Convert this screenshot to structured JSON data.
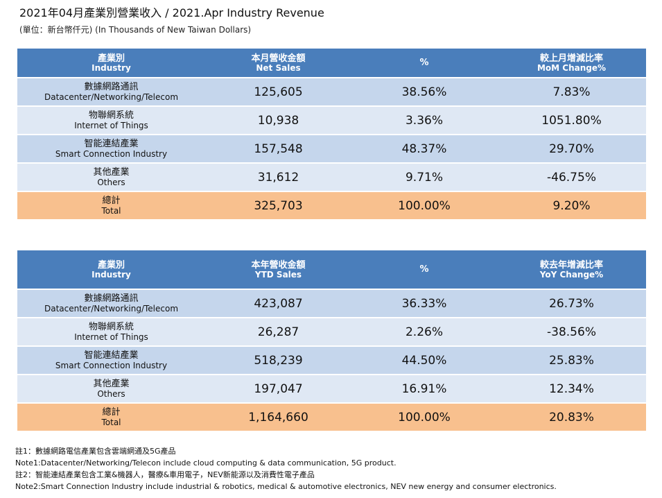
{
  "header": {
    "title": "2021年04月產業別營業收入 / 2021.Apr Industry Revenue",
    "unit": "(單位：新台幣仟元) (In Thousands of New Taiwan Dollars)"
  },
  "monthly": {
    "headers": [
      {
        "zh": "產業別",
        "en": "Industry"
      },
      {
        "zh": "本月營收金額",
        "en": "Net Sales"
      },
      {
        "zh": "%",
        "en": ""
      },
      {
        "zh": "較上月增減比率",
        "en": "MoM Change%"
      }
    ],
    "rows": [
      {
        "zh": "數據網路通訊",
        "en": "Datacenter/Networking/Telecom",
        "sales": "125,605",
        "pct": "38.56%",
        "change": "7.83%"
      },
      {
        "zh": "物聯網系統",
        "en": "Internet of Things",
        "sales": "10,938",
        "pct": "3.36%",
        "change": "1051.80%"
      },
      {
        "zh": "智能連結產業",
        "en": "Smart Connection Industry",
        "sales": "157,548",
        "pct": "48.37%",
        "change": "29.70%"
      },
      {
        "zh": "其他產業",
        "en": "Others",
        "sales": "31,612",
        "pct": "9.71%",
        "change": "-46.75%"
      }
    ],
    "total": {
      "zh": "總計",
      "en": "Total",
      "sales": "325,703",
      "pct": "100.00%",
      "change": "9.20%"
    }
  },
  "ytd": {
    "headers": [
      {
        "zh": "產業別",
        "en": "Industry"
      },
      {
        "zh": "本年營收金額",
        "en": "YTD Sales"
      },
      {
        "zh": "%",
        "en": ""
      },
      {
        "zh": "較去年增減比率",
        "en": "YoY Change%"
      }
    ],
    "rows": [
      {
        "zh": "數據網路通訊",
        "en": "Datacenter/Networking/Telecom",
        "sales": "423,087",
        "pct": "36.33%",
        "change": "26.73%"
      },
      {
        "zh": "物聯網系統",
        "en": "Internet of Things",
        "sales": "26,287",
        "pct": "2.26%",
        "change": "-38.56%"
      },
      {
        "zh": "智能連結產業",
        "en": "Smart Connection Industry",
        "sales": "518,239",
        "pct": "44.50%",
        "change": "25.83%"
      },
      {
        "zh": "其他產業",
        "en": "Others",
        "sales": "197,047",
        "pct": "16.91%",
        "change": "12.34%"
      }
    ],
    "total": {
      "zh": "總計",
      "en": "Total",
      "sales": "1,164,660",
      "pct": "100.00%",
      "change": "20.83%"
    }
  },
  "notes": [
    "註1：數據網路電信產業包含雲端網通及5G產品",
    "Note1:Datacenter/Networking/Telecon include cloud computing & data communication, 5G product.",
    "註2：智能連結產業包含工業&機器人，醫療&車用電子，NEV新能源以及消費性電子產品",
    "Note2:Smart Connection Industry include industrial & robotics, medical & automotive electronics, NEV new energy and consumer electronics."
  ],
  "colors": {
    "header_bg": "#4a7ebb",
    "row_odd": "#c5d6ec",
    "row_even": "#dfe8f4",
    "total_bg": "#f8c08e"
  }
}
